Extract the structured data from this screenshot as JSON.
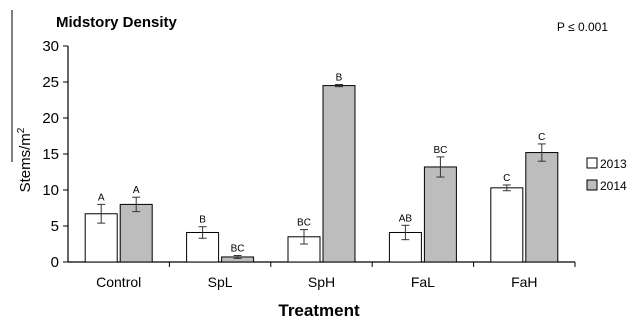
{
  "chart_data": {
    "type": "bar",
    "title": "Midstory Density",
    "annotation": "P ≤ 0.001",
    "xlabel": "Treatment",
    "ylabel": "Stems/m",
    "ylabel_superscript": "2",
    "ylim": [
      0,
      30
    ],
    "yticks": [
      0,
      5,
      10,
      15,
      20,
      25,
      30
    ],
    "categories": [
      "Control",
      "SpL",
      "SpH",
      "FaL",
      "FaH"
    ],
    "series": [
      {
        "name": "2013",
        "color": "#ffffff",
        "values": [
          6.7,
          4.1,
          3.5,
          4.1,
          10.3
        ],
        "errors": [
          1.3,
          0.8,
          1.0,
          1.0,
          0.4
        ],
        "labels": [
          "A",
          "B",
          "BC",
          "AB",
          "C"
        ]
      },
      {
        "name": "2014",
        "color": "#bdbdbd",
        "values": [
          8.0,
          0.7,
          24.5,
          13.2,
          15.2
        ],
        "errors": [
          1.0,
          0.2,
          0.15,
          1.4,
          1.2
        ],
        "labels": [
          "A",
          "BC",
          "B",
          "BC",
          "C"
        ]
      }
    ],
    "grid": false,
    "legend_position": "right"
  }
}
